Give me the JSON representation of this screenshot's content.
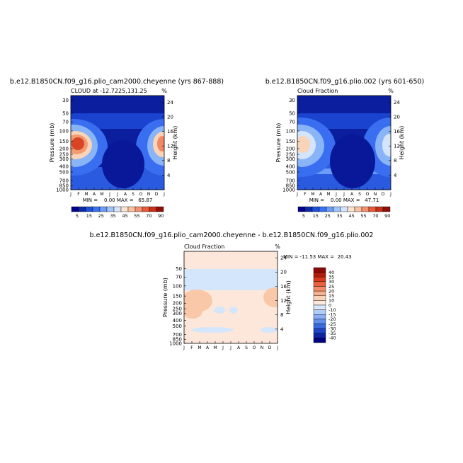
{
  "panels": [
    {
      "title": "b.e12.B1850CN.f09_g16.plio_cam2000.cheyenne (yrs 867-888)",
      "subtitle": "CLOUD at -12.7225,131.25",
      "corner": "%",
      "y_label": "Pressure (mb)",
      "y2_label": "Height (km)",
      "pressure_ticks": [
        "30",
        "50",
        "70",
        "100",
        "150",
        "200",
        "250",
        "300",
        "400",
        "500",
        "700",
        "850",
        "1000"
      ],
      "height_ticks": [
        "24",
        "20",
        "16",
        "12",
        "8",
        "4"
      ],
      "months": [
        "J",
        "F",
        "M",
        "A",
        "M",
        "J",
        "J",
        "A",
        "S",
        "O",
        "N",
        "D",
        "J"
      ],
      "min_max": "MIN =    0.00 MAX =   65.87",
      "colorbar_labels": [
        "5",
        "15",
        "25",
        "35",
        "45",
        "55",
        "70",
        "90"
      ]
    },
    {
      "title": "b.e12.B1850CN.f09_g16.plio.002 (yrs 601-650)",
      "subtitle": "Cloud Fraction",
      "corner": "%",
      "y_label": "Pressure (mb)",
      "y2_label": "Height (km)",
      "pressure_ticks": [
        "30",
        "50",
        "70",
        "100",
        "150",
        "200",
        "250",
        "300",
        "400",
        "500",
        "700",
        "850",
        "1000"
      ],
      "height_ticks": [
        "24",
        "20",
        "16",
        "12",
        "8",
        "4"
      ],
      "months": [
        "J",
        "F",
        "M",
        "A",
        "M",
        "J",
        "J",
        "A",
        "S",
        "O",
        "N",
        "D",
        "J"
      ],
      "min_max": "MIN =    0.00 MAX =   47.71",
      "colorbar_labels": [
        "5",
        "15",
        "25",
        "35",
        "45",
        "55",
        "70",
        "90"
      ]
    },
    {
      "title": "b.e12.B1850CN.f09_g16.plio_cam2000.cheyenne - b.e12.B1850CN.f09_g16.plio.002",
      "subtitle": "Cloud Fraction",
      "corner": "%",
      "y_label": "Pressure (mb)",
      "y2_label": "Height (km)",
      "pressure_ticks": [
        "50",
        "70",
        "100",
        "150",
        "200",
        "250",
        "300",
        "400",
        "500",
        "700",
        "850",
        "1000"
      ],
      "height_ticks": [
        "24",
        "20",
        "16",
        "12",
        "8",
        "4"
      ],
      "months": [
        "J",
        "F",
        "M",
        "A",
        "M",
        "J",
        "J",
        "A",
        "S",
        "O",
        "N",
        "D",
        "J"
      ],
      "min_max": "MIN = -11.53 MAX =  20.43",
      "colorbar_labels": [
        "40",
        "35",
        "30",
        "25",
        "20",
        "15",
        "10",
        "0",
        "-10",
        "-15",
        "-20",
        "-25",
        "-30",
        "-35",
        "-40"
      ]
    }
  ]
}
